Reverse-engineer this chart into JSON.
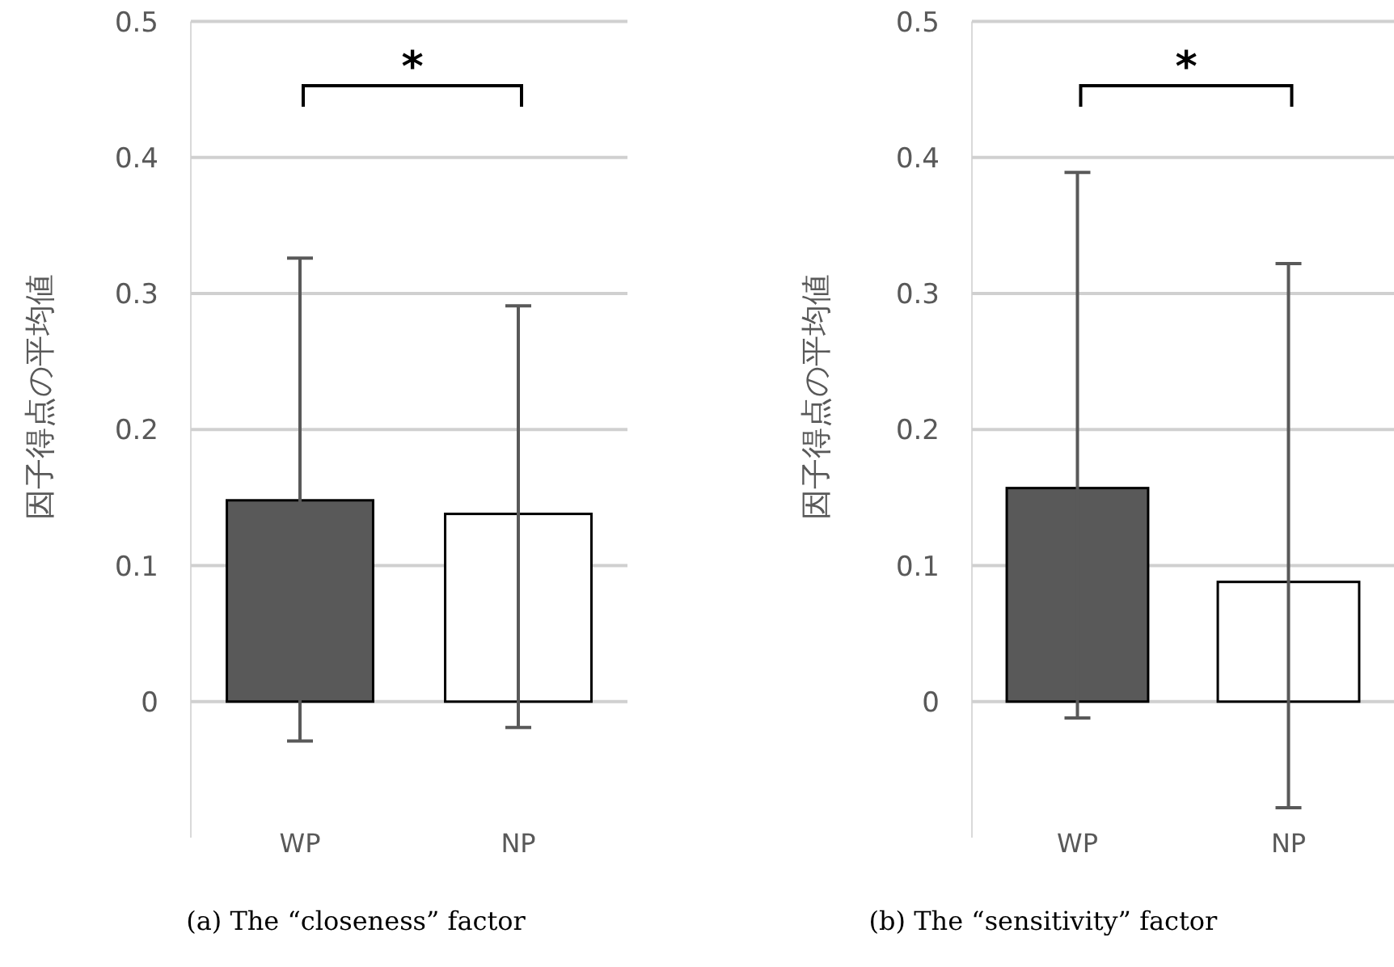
{
  "chart_data": [
    {
      "type": "bar",
      "categories": [
        "WP",
        "NP"
      ],
      "values": [
        0.148,
        0.138
      ],
      "colors": [
        "#595959",
        "#ffffff"
      ],
      "errors": [
        [
          -0.029,
          0.326
        ],
        [
          -0.019,
          0.291
        ]
      ],
      "ylabel": "因子得点の平均値",
      "ylim": [
        -0.1,
        0.5
      ],
      "yticks": [
        0,
        0.1,
        0.2,
        0.3,
        0.4,
        0.5
      ],
      "grid": "y",
      "annotations": [
        "*",
        "(a) The “closeness” factor"
      ]
    },
    {
      "type": "bar",
      "categories": [
        "WP",
        "NP"
      ],
      "values": [
        0.157,
        0.088
      ],
      "colors": [
        "#595959",
        "#ffffff"
      ],
      "errors": [
        [
          -0.012,
          0.389
        ],
        [
          -0.078,
          0.322
        ]
      ],
      "ylabel": "因子得点の平均値",
      "ylim": [
        -0.1,
        0.5
      ],
      "yticks": [
        0,
        0.1,
        0.2,
        0.3,
        0.4,
        0.5
      ],
      "grid": "y",
      "annotations": [
        "*",
        "(b) The “sensitivity” factor"
      ]
    }
  ]
}
